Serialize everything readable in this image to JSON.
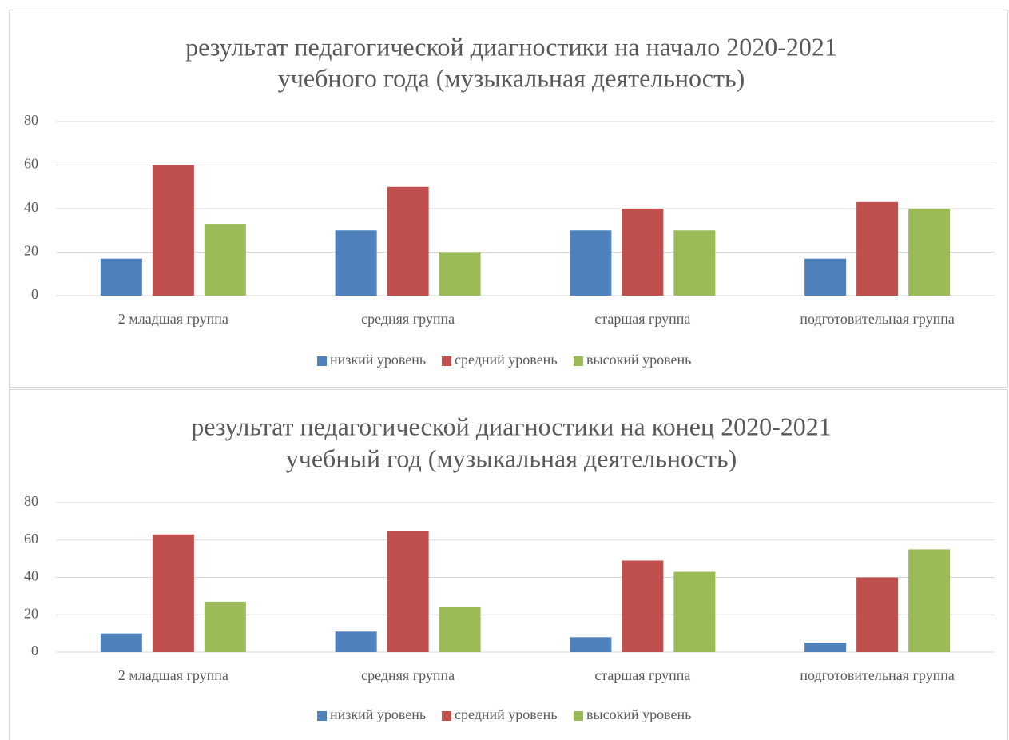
{
  "chart_data": [
    {
      "type": "bar",
      "title": [
        "результат педагогической диагностики на начало 2020-2021",
        "учебного года (музыкальная деятельность)"
      ],
      "categories": [
        "2 младшая группа",
        "средняя группа",
        "старшая группа",
        "подготовительная группа"
      ],
      "series": [
        {
          "name": "низкий уровень",
          "color": "#4f81bd",
          "values": [
            17,
            30,
            30,
            17
          ]
        },
        {
          "name": "средний уровень",
          "color": "#c0504d",
          "values": [
            60,
            50,
            40,
            43
          ]
        },
        {
          "name": "высокий уровень",
          "color": "#9bbb59",
          "values": [
            33,
            20,
            30,
            40
          ]
        }
      ],
      "ylim": [
        0,
        80
      ],
      "yticks": [
        0,
        20,
        40,
        60,
        80
      ],
      "grid": true,
      "legend": "bottom"
    },
    {
      "type": "bar",
      "title": [
        "результат педагогической диагностики на конец 2020-2021",
        "учебный год (музыкальная деятельность)"
      ],
      "categories": [
        "2 младшая группа",
        "средняя группа",
        "старшая группа",
        "подготовительная группа"
      ],
      "series": [
        {
          "name": "низкий уровень",
          "color": "#4f81bd",
          "values": [
            10,
            11,
            8,
            5
          ]
        },
        {
          "name": "средний уровень",
          "color": "#c0504d",
          "values": [
            63,
            65,
            49,
            40
          ]
        },
        {
          "name": "высокий уровень",
          "color": "#9bbb59",
          "values": [
            27,
            24,
            43,
            55
          ]
        }
      ],
      "ylim": [
        0,
        80
      ],
      "yticks": [
        0,
        20,
        40,
        60,
        80
      ],
      "grid": true,
      "legend": "bottom"
    }
  ]
}
